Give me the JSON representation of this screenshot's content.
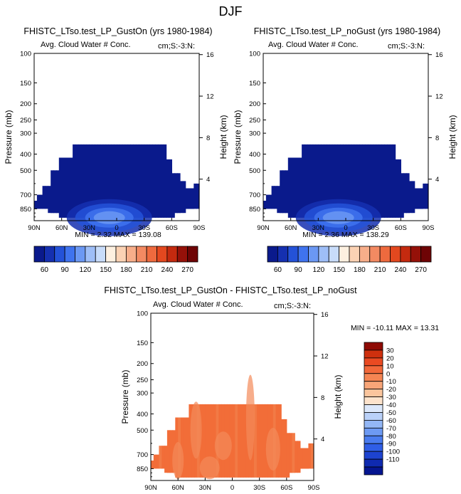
{
  "page_title": "DJF",
  "colors": {
    "background": "#ffffff",
    "frame": "#000000",
    "abs_palette": [
      "#0a1a8c",
      "#1530b0",
      "#2452d8",
      "#3f73ee",
      "#6b98f3",
      "#9ebef7",
      "#c8dcfa",
      "#fdf0e0",
      "#fbd2b4",
      "#f7ae8a",
      "#f38a62",
      "#ee6a3e",
      "#e3481f",
      "#c42a0f",
      "#951109",
      "#6e0405"
    ],
    "diff_palette": [
      "#051590",
      "#0f2ab0",
      "#1d43d0",
      "#2f5ee6",
      "#4a7cef",
      "#6d9af3",
      "#93b7f6",
      "#bad1f9",
      "#dce8fb",
      "#fde3cc",
      "#fbc59d",
      "#f8a578",
      "#f58553",
      "#f2683a",
      "#ea4a22",
      "#cf300e",
      "#8e0a04"
    ]
  },
  "panels": [
    {
      "title": "FHISTC_LTso.test_LP_GustOn (yrs 1980-1984)",
      "subtitle_left": "Avg. Cloud Water # Conc.",
      "subtitle_right": "cm;S:-3:N:",
      "min_max": "MIN =  2.32  MAX = 139.08",
      "colorbar": "horizontal"
    },
    {
      "title": "FHISTC_LTso.test_LP_noGust (yrs 1980-1984)",
      "subtitle_left": "Avg. Cloud Water # Conc.",
      "subtitle_right": "cm;S:-3:N:",
      "min_max": "MIN =  2.36  MAX = 138.29",
      "colorbar": "horizontal"
    },
    {
      "title": "FHISTC_LTso.test_LP_GustOn - FHISTC_LTso.test_LP_noGust",
      "subtitle_left": "Avg. Cloud Water # Conc.",
      "subtitle_right": "cm;S:-3:N:",
      "min_max": "MIN = -10.11   MAX =  13.31",
      "colorbar": "vertical"
    }
  ],
  "chart_data": [
    {
      "type": "heatmap",
      "title": "FHISTC_LTso.test_LP_GustOn (yrs 1980-1984)",
      "subtitle": "Avg. Cloud Water # Conc.",
      "units_label": "cm;S:-3:N:",
      "xlabel": "",
      "ylabel": "Pressure (mb)",
      "ylabel_right": "Height (km)",
      "x_ticks": [
        "90N",
        "60N",
        "30N",
        "0",
        "30S",
        "60S",
        "90S"
      ],
      "y_ticks": [
        "100",
        "150",
        "200",
        "250",
        "300",
        "400",
        "500",
        "700",
        "850"
      ],
      "y_right_ticks": [
        "16",
        "12",
        "8",
        "4"
      ],
      "xlim": [
        90,
        -90
      ],
      "ylim_mb": [
        100,
        1000
      ],
      "y_scale": "log",
      "min": 2.32,
      "max": 139.08,
      "colorbar_labels": [
        "60",
        "90",
        "120",
        "150",
        "180",
        "210",
        "240",
        "270"
      ],
      "colorbar_levels": [
        45,
        60,
        75,
        90,
        105,
        120,
        135,
        150,
        165,
        180,
        195,
        210,
        225,
        240,
        255,
        270
      ]
    },
    {
      "type": "heatmap",
      "title": "FHISTC_LTso.test_LP_noGust (yrs 1980-1984)",
      "subtitle": "Avg. Cloud Water # Conc.",
      "units_label": "cm;S:-3:N:",
      "xlabel": "",
      "ylabel": "Pressure (mb)",
      "ylabel_right": "Height (km)",
      "x_ticks": [
        "90N",
        "60N",
        "30N",
        "0",
        "30S",
        "60S",
        "90S"
      ],
      "y_ticks": [
        "100",
        "150",
        "200",
        "250",
        "300",
        "400",
        "500",
        "700",
        "850"
      ],
      "y_right_ticks": [
        "16",
        "12",
        "8",
        "4"
      ],
      "xlim": [
        90,
        -90
      ],
      "ylim_mb": [
        100,
        1000
      ],
      "y_scale": "log",
      "min": 2.36,
      "max": 138.29,
      "colorbar_labels": [
        "60",
        "90",
        "120",
        "150",
        "180",
        "210",
        "240",
        "270"
      ],
      "colorbar_levels": [
        45,
        60,
        75,
        90,
        105,
        120,
        135,
        150,
        165,
        180,
        195,
        210,
        225,
        240,
        255,
        270
      ]
    },
    {
      "type": "heatmap",
      "title": "FHISTC_LTso.test_LP_GustOn - FHISTC_LTso.test_LP_noGust",
      "subtitle": "Avg. Cloud Water # Conc.",
      "units_label": "cm;S:-3:N:",
      "xlabel": "",
      "ylabel": "Pressure (mb)",
      "ylabel_right": "Height (km)",
      "x_ticks": [
        "90N",
        "60N",
        "30N",
        "0",
        "30S",
        "60S",
        "90S"
      ],
      "y_ticks": [
        "100",
        "150",
        "200",
        "250",
        "300",
        "400",
        "500",
        "700",
        "850"
      ],
      "y_right_ticks": [
        "16",
        "12",
        "8",
        "4"
      ],
      "xlim": [
        90,
        -90
      ],
      "ylim_mb": [
        100,
        1000
      ],
      "y_scale": "log",
      "min": -10.11,
      "max": 13.31,
      "colorbar_labels": [
        "30",
        "20",
        "10",
        "0",
        "-10",
        "-20",
        "-30",
        "-40",
        "-50",
        "-60",
        "-70",
        "-80",
        "-90",
        "-100",
        "-110"
      ]
    }
  ]
}
